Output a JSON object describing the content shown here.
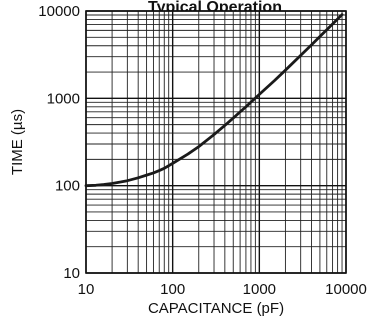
{
  "chart_data": {
    "type": "line",
    "title": "Typical Operation",
    "xlabel": "CAPACITANCE (pF)",
    "ylabel": "TIME (µs)",
    "x_scale": "log",
    "y_scale": "log",
    "xlim": [
      10,
      10000
    ],
    "ylim": [
      10,
      10000
    ],
    "x_ticks": [
      "10",
      "100",
      "1000",
      "10000"
    ],
    "y_ticks": [
      "10",
      "100",
      "1000",
      "10000"
    ],
    "grid": true,
    "legend": "none",
    "series": [
      {
        "x": [
          10,
          13,
          16,
          20,
          25,
          30,
          40,
          50,
          60,
          70,
          80,
          100,
          150,
          200,
          300,
          400,
          500,
          600,
          700,
          800,
          1000,
          1500,
          2000,
          3000,
          4000,
          5000,
          6000,
          7000,
          8000,
          9000
        ],
        "y": [
          100,
          101,
          103,
          106,
          110,
          114,
          123,
          132,
          140,
          149,
          158,
          180,
          230,
          280,
          385,
          490,
          595,
          700,
          800,
          905,
          1110,
          1600,
          2100,
          3100,
          4100,
          5100,
          6100,
          7100,
          8100,
          9100
        ],
        "color": "#1a1a1a"
      }
    ]
  }
}
